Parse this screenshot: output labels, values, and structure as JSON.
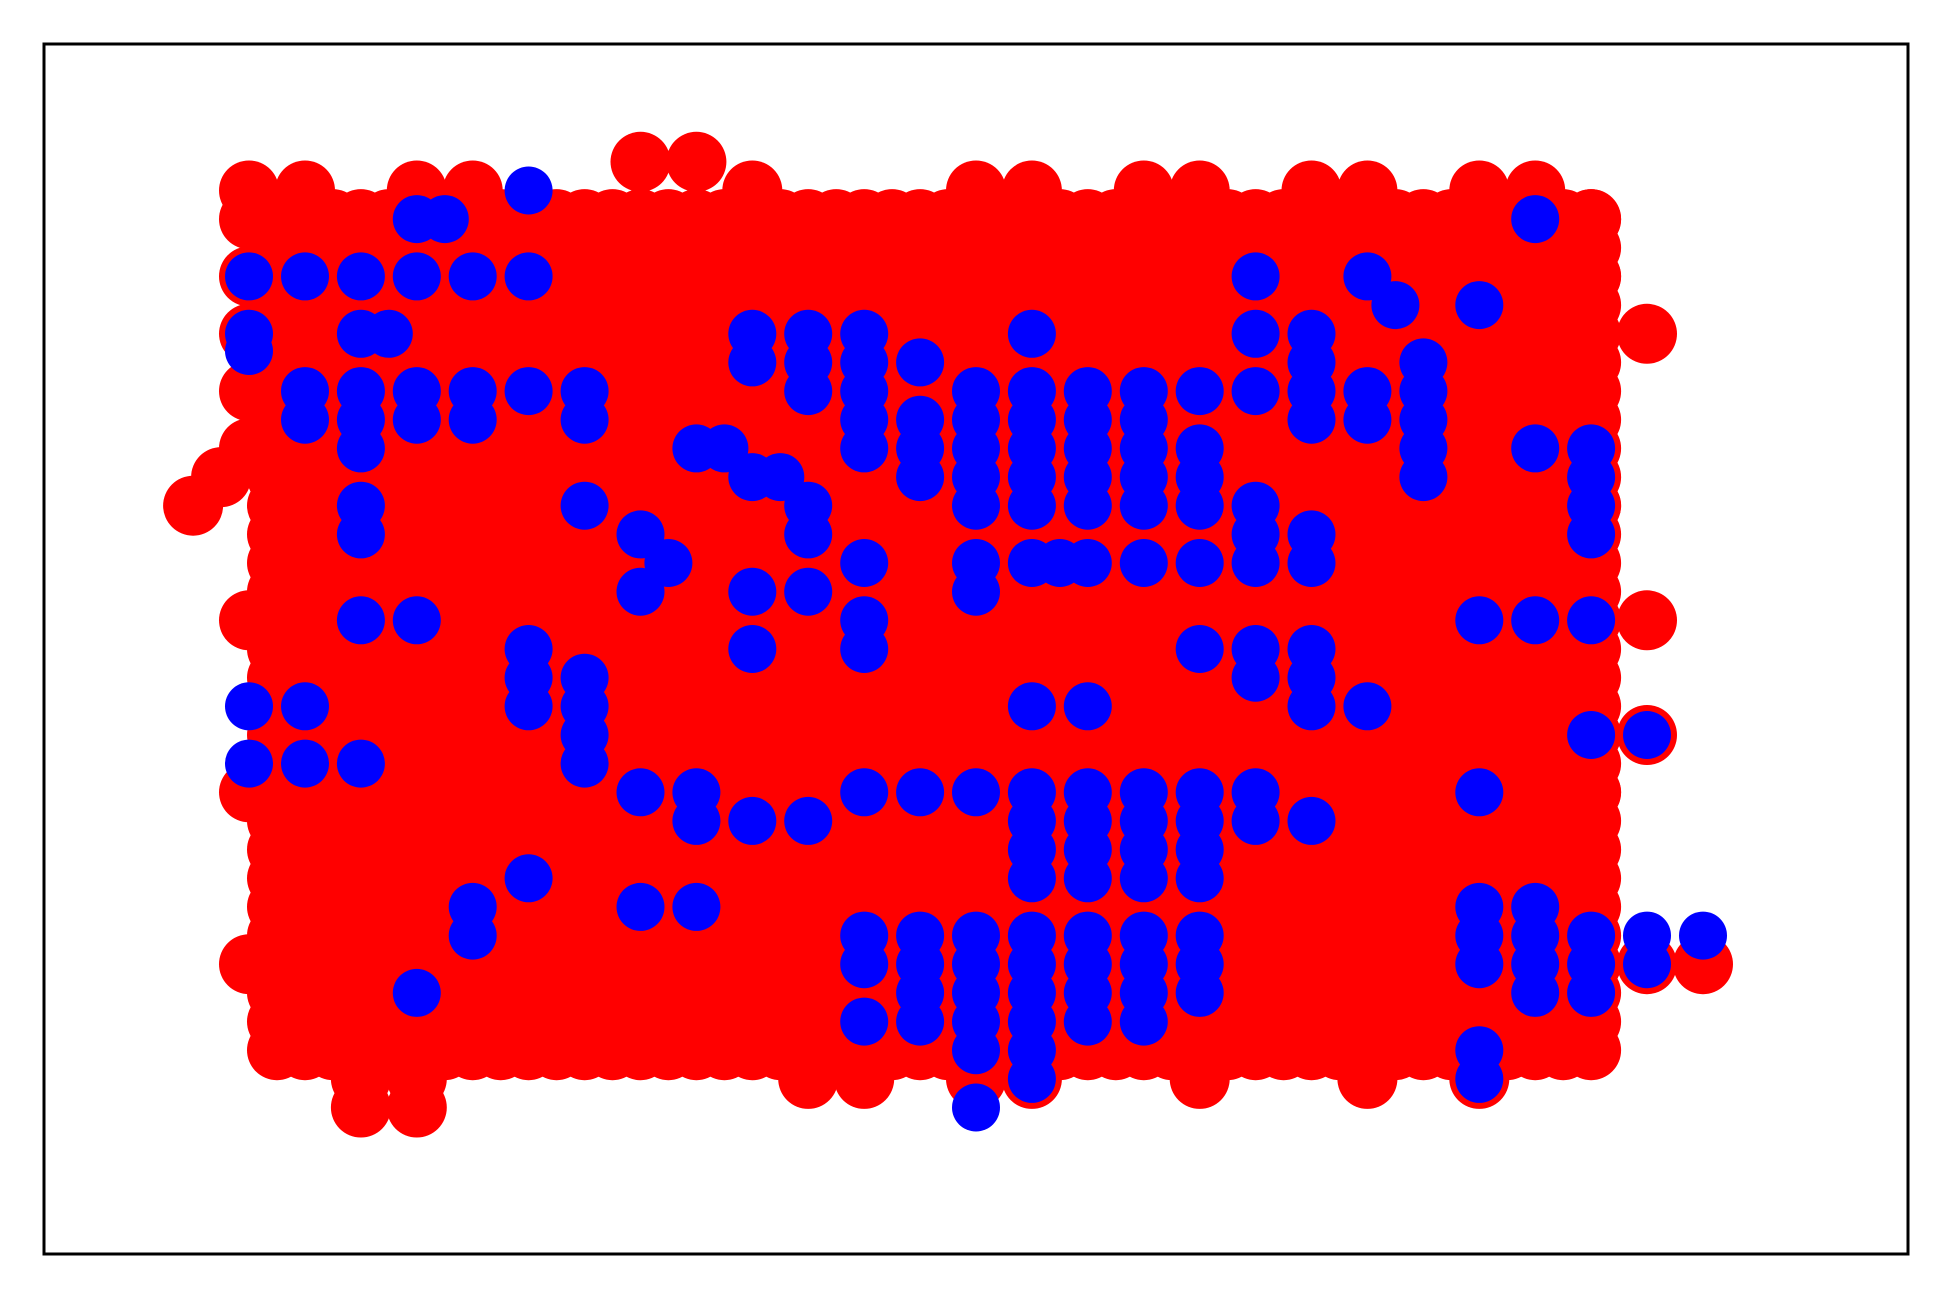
{
  "chart_data": {
    "type": "scatter",
    "title": "",
    "xlabel": "",
    "ylabel": "",
    "xlim": [
      0,
      30
    ],
    "ylim": [
      0,
      19
    ],
    "grid": false,
    "legend": "none",
    "ticks": "hidden",
    "colors": {
      "red": "#ff0000",
      "blue": "#0000ff",
      "frame": "#000000"
    },
    "series": [
      {
        "color": "red",
        "marker": "filled-circle",
        "points": [
          [
            2,
            17.5
          ],
          [
            3,
            17.5
          ],
          [
            5,
            17.5
          ],
          [
            6,
            17.5
          ],
          [
            9,
            18
          ],
          [
            10,
            18
          ],
          [
            11,
            17.5
          ],
          [
            15,
            17.5
          ],
          [
            16,
            17.5
          ],
          [
            18,
            17.5
          ],
          [
            19,
            17.5
          ],
          [
            21,
            17.5
          ],
          [
            22,
            17.5
          ],
          [
            24,
            17.5
          ],
          [
            25,
            17.5
          ],
          [
            2,
            17
          ],
          [
            26,
            17
          ],
          [
            2,
            16
          ],
          [
            26,
            16
          ],
          [
            2,
            15
          ],
          [
            27,
            15
          ],
          [
            2,
            14
          ],
          [
            2,
            13
          ],
          [
            1.5,
            12.5
          ],
          [
            2.5,
            12.5
          ],
          [
            1,
            12
          ],
          [
            26,
            12
          ],
          [
            2,
            10
          ],
          [
            26,
            10
          ],
          [
            27,
            10
          ],
          [
            26,
            8
          ],
          [
            27,
            8
          ],
          [
            2,
            7
          ],
          [
            26,
            7
          ],
          [
            2,
            4
          ],
          [
            3,
            4
          ],
          [
            26,
            4
          ],
          [
            27,
            4
          ],
          [
            28,
            4
          ],
          [
            4,
            2
          ],
          [
            5,
            2
          ],
          [
            4,
            1.5
          ],
          [
            5,
            1.5
          ],
          [
            12,
            2
          ],
          [
            13,
            2
          ],
          [
            15,
            2
          ],
          [
            16,
            2
          ],
          [
            19,
            2
          ],
          [
            22,
            2
          ],
          [
            24,
            2
          ]
        ],
        "fill_region": {
          "x": [
            2.5,
            26
          ],
          "y": [
            2.5,
            17
          ]
        }
      },
      {
        "color": "blue",
        "marker": "filled-circle",
        "points": [
          [
            2,
            16
          ],
          [
            3,
            16
          ],
          [
            4,
            16
          ],
          [
            5,
            16
          ],
          [
            6,
            16
          ],
          [
            7,
            16
          ],
          [
            5,
            17
          ],
          [
            5.5,
            17
          ],
          [
            7,
            17.5
          ],
          [
            4,
            15
          ],
          [
            4.5,
            15
          ],
          [
            2,
            15
          ],
          [
            2,
            14.7
          ],
          [
            3,
            14
          ],
          [
            4,
            14
          ],
          [
            5,
            14
          ],
          [
            6,
            14
          ],
          [
            3,
            13.5
          ],
          [
            4,
            13.5
          ],
          [
            5,
            13.5
          ],
          [
            6,
            13.5
          ],
          [
            4,
            13
          ],
          [
            4,
            12
          ],
          [
            4,
            11.5
          ],
          [
            7,
            14
          ],
          [
            8,
            14
          ],
          [
            8,
            13.5
          ],
          [
            11,
            15
          ],
          [
            12,
            15
          ],
          [
            13,
            15
          ],
          [
            11,
            14.5
          ],
          [
            12,
            14.5
          ],
          [
            13,
            14.5
          ],
          [
            14,
            14.5
          ],
          [
            12,
            14
          ],
          [
            13,
            14
          ],
          [
            13,
            13.5
          ],
          [
            14,
            13.5
          ],
          [
            10,
            13
          ],
          [
            10.5,
            13
          ],
          [
            11,
            12.5
          ],
          [
            11.5,
            12.5
          ],
          [
            12,
            12
          ],
          [
            13,
            13
          ],
          [
            14,
            13
          ],
          [
            14,
            12.5
          ],
          [
            12,
            11.5
          ],
          [
            13,
            11
          ],
          [
            12,
            10.5
          ],
          [
            11,
            10.5
          ],
          [
            8,
            12
          ],
          [
            9,
            11.5
          ],
          [
            9.5,
            11
          ],
          [
            9,
            10.5
          ],
          [
            13,
            10
          ],
          [
            13,
            9.5
          ],
          [
            11,
            9.5
          ],
          [
            15,
            14
          ],
          [
            16,
            15
          ],
          [
            16,
            14
          ],
          [
            17,
            14
          ],
          [
            18,
            14
          ],
          [
            15,
            13.5
          ],
          [
            16,
            13.5
          ],
          [
            17,
            13.5
          ],
          [
            18,
            13.5
          ],
          [
            15,
            13
          ],
          [
            16,
            13
          ],
          [
            17,
            13
          ],
          [
            18,
            13
          ],
          [
            19,
            13
          ],
          [
            15,
            12.5
          ],
          [
            16,
            12.5
          ],
          [
            17,
            12.5
          ],
          [
            18,
            12.5
          ],
          [
            19,
            12.5
          ],
          [
            15,
            12
          ],
          [
            16,
            12
          ],
          [
            17,
            12
          ],
          [
            18,
            12
          ],
          [
            19,
            12
          ],
          [
            20,
            12
          ],
          [
            20,
            11.5
          ],
          [
            21,
            11.5
          ],
          [
            15,
            11
          ],
          [
            16,
            11
          ],
          [
            17,
            11
          ],
          [
            18,
            11
          ],
          [
            19,
            11
          ],
          [
            20,
            11
          ],
          [
            21,
            11
          ],
          [
            15,
            10.5
          ],
          [
            16.5,
            11
          ],
          [
            19,
            14
          ],
          [
            20,
            14
          ],
          [
            21,
            14
          ],
          [
            22,
            14
          ],
          [
            20,
            15
          ],
          [
            21,
            15
          ],
          [
            21,
            14.5
          ],
          [
            23,
            14.5
          ],
          [
            23,
            14
          ],
          [
            23,
            13.5
          ],
          [
            23,
            13
          ],
          [
            23,
            12.5
          ],
          [
            21,
            13.5
          ],
          [
            22,
            13.5
          ],
          [
            20,
            16
          ],
          [
            22,
            16
          ],
          [
            22.5,
            15.5
          ],
          [
            24,
            15.5
          ],
          [
            25,
            17
          ],
          [
            25,
            13
          ],
          [
            26,
            13
          ],
          [
            26,
            12.5
          ],
          [
            26,
            12
          ],
          [
            26,
            11.5
          ],
          [
            25,
            10
          ],
          [
            26,
            10
          ],
          [
            24,
            10
          ],
          [
            19,
            9.5
          ],
          [
            20,
            9.5
          ],
          [
            21,
            9.5
          ],
          [
            20,
            9
          ],
          [
            21,
            9
          ],
          [
            21,
            8.5
          ],
          [
            22,
            8.5
          ],
          [
            2,
            8.5
          ],
          [
            3,
            8.5
          ],
          [
            2,
            7.5
          ],
          [
            3,
            7.5
          ],
          [
            4,
            10
          ],
          [
            5,
            10
          ],
          [
            7,
            9.5
          ],
          [
            7,
            9
          ],
          [
            8,
            9
          ],
          [
            7,
            8.5
          ],
          [
            8,
            8.5
          ],
          [
            8,
            8
          ],
          [
            8,
            7.5
          ],
          [
            9,
            7
          ],
          [
            10,
            7
          ],
          [
            10,
            6.5
          ],
          [
            11,
            6.5
          ],
          [
            12,
            6.5
          ],
          [
            13,
            7
          ],
          [
            14,
            7
          ],
          [
            15,
            7
          ],
          [
            16,
            7
          ],
          [
            17,
            7
          ],
          [
            18,
            7
          ],
          [
            19,
            7
          ],
          [
            20,
            7
          ],
          [
            16,
            6.5
          ],
          [
            17,
            6.5
          ],
          [
            18,
            6.5
          ],
          [
            19,
            6.5
          ],
          [
            16,
            8.5
          ],
          [
            17,
            8.5
          ],
          [
            16,
            6
          ],
          [
            17,
            6
          ],
          [
            18,
            6
          ],
          [
            19,
            6
          ],
          [
            20,
            6.5
          ],
          [
            21,
            6.5
          ],
          [
            16,
            5.5
          ],
          [
            17,
            5.5
          ],
          [
            18,
            5.5
          ],
          [
            19,
            5.5
          ],
          [
            7,
            5.5
          ],
          [
            6,
            5
          ],
          [
            9,
            5
          ],
          [
            10,
            5
          ],
          [
            13,
            4.5
          ],
          [
            14,
            4.5
          ],
          [
            15,
            4.5
          ],
          [
            16,
            4.5
          ],
          [
            17,
            4.5
          ],
          [
            18,
            4.5
          ],
          [
            19,
            4.5
          ],
          [
            13,
            4
          ],
          [
            14,
            4
          ],
          [
            15,
            4
          ],
          [
            16,
            4
          ],
          [
            17,
            4
          ],
          [
            18,
            4
          ],
          [
            19,
            4
          ],
          [
            14,
            3.5
          ],
          [
            15,
            3.5
          ],
          [
            16,
            3.5
          ],
          [
            17,
            3.5
          ],
          [
            18,
            3.5
          ],
          [
            19,
            3.5
          ],
          [
            13,
            3
          ],
          [
            14,
            3
          ],
          [
            15,
            3
          ],
          [
            16,
            3
          ],
          [
            17,
            3
          ],
          [
            18,
            3
          ],
          [
            15,
            2.5
          ],
          [
            16,
            2.5
          ],
          [
            16,
            2
          ],
          [
            15,
            1.5
          ],
          [
            24,
            5
          ],
          [
            25,
            5
          ],
          [
            24,
            4.5
          ],
          [
            25,
            4.5
          ],
          [
            26,
            4.5
          ],
          [
            27,
            4.5
          ],
          [
            28,
            4.5
          ],
          [
            24,
            4
          ],
          [
            25,
            4
          ],
          [
            26,
            4
          ],
          [
            27,
            4
          ],
          [
            25,
            3.5
          ],
          [
            26,
            3.5
          ],
          [
            24,
            2
          ],
          [
            24,
            2.5
          ],
          [
            26,
            8
          ],
          [
            27,
            8
          ],
          [
            24,
            7
          ],
          [
            5,
            3.5
          ],
          [
            6,
            4.5
          ],
          [
            4,
            7.5
          ]
        ]
      }
    ]
  }
}
